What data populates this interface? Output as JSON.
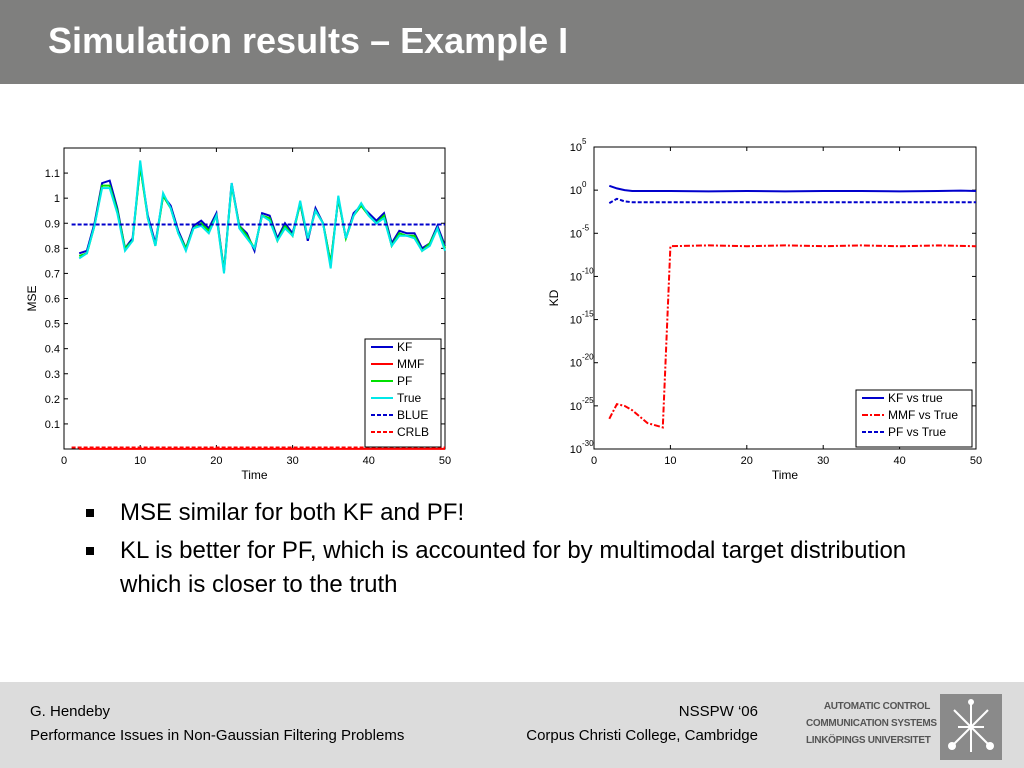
{
  "slide": {
    "title": "Simulation results – Example I"
  },
  "bullets": [
    "MSE similar for both KF and PF!",
    "KL is better for PF, which is accounted for by multimodal target distribution which is closer to the truth"
  ],
  "footer": {
    "author": "G. Hendeby",
    "talk_title": "Performance Issues in Non-Gaussian Filtering Problems",
    "event": "NSSPW ‘06",
    "venue": "Corpus Christi College, Cambridge"
  },
  "logo": {
    "line1": "AUTOMATIC CONTROL",
    "line2": "COMMUNICATION SYSTEMS",
    "line3": "LINKÖPINGS UNIVERSITET"
  },
  "colors": {
    "title_bar": "#7f7f7e",
    "footer": "#dcdcdc",
    "kf": "#0000cc",
    "mmf": "#ff0000",
    "pf": "#00e000",
    "true": "#00e8e8",
    "blue": "#0000cc",
    "crlb": "#ff0000"
  },
  "chart_data": [
    {
      "type": "line",
      "xlabel": "Time",
      "ylabel": "MSE",
      "xlim": [
        0,
        50
      ],
      "ylim": [
        0,
        1.2
      ],
      "xticks": [
        "0",
        "10",
        "20",
        "30",
        "40",
        "50"
      ],
      "yticks": [
        "0.1",
        "0.2",
        "0.3",
        "0.4",
        "0.5",
        "0.6",
        "0.7",
        "0.8",
        "0.9",
        "1",
        "1.1"
      ],
      "legend_position": "bottom-right",
      "series": [
        {
          "name": "KF",
          "color": "#0000cc",
          "style": "solid",
          "x": [
            2,
            3,
            4,
            5,
            6,
            7,
            8,
            9,
            10,
            11,
            12,
            13,
            14,
            15,
            16,
            17,
            18,
            19,
            20,
            21,
            22,
            23,
            24,
            25,
            26,
            27,
            28,
            29,
            30,
            31,
            32,
            33,
            34,
            35,
            36,
            37,
            38,
            39,
            40,
            41,
            42,
            43,
            44,
            45,
            46,
            47,
            48,
            49,
            50
          ],
          "y": [
            0.78,
            0.79,
            0.9,
            1.06,
            1.07,
            0.96,
            0.8,
            0.84,
            1.13,
            0.93,
            0.82,
            1.01,
            0.97,
            0.87,
            0.8,
            0.89,
            0.91,
            0.88,
            0.94,
            0.71,
            1.06,
            0.89,
            0.86,
            0.79,
            0.94,
            0.93,
            0.84,
            0.9,
            0.86,
            0.98,
            0.83,
            0.96,
            0.9,
            0.74,
            1.0,
            0.84,
            0.94,
            0.97,
            0.94,
            0.91,
            0.94,
            0.82,
            0.87,
            0.86,
            0.86,
            0.8,
            0.82,
            0.89,
            0.81
          ]
        },
        {
          "name": "MMF",
          "color": "#ff0000",
          "style": "solid",
          "x": [
            2,
            50
          ],
          "y": [
            0.0004,
            0.0004
          ]
        },
        {
          "name": "PF",
          "color": "#00e000",
          "style": "solid",
          "x": [
            2,
            3,
            4,
            5,
            6,
            7,
            8,
            9,
            10,
            11,
            12,
            13,
            14,
            15,
            16,
            17,
            18,
            19,
            20,
            21,
            22,
            23,
            24,
            25,
            26,
            27,
            28,
            29,
            30,
            31,
            32,
            33,
            34,
            35,
            36,
            37,
            38,
            39,
            40,
            41,
            42,
            43,
            44,
            45,
            46,
            47,
            48,
            49,
            50
          ],
          "y": [
            0.77,
            0.78,
            0.89,
            1.05,
            1.05,
            0.95,
            0.8,
            0.83,
            1.13,
            0.92,
            0.81,
            1.01,
            0.96,
            0.86,
            0.8,
            0.88,
            0.9,
            0.87,
            0.93,
            0.71,
            1.05,
            0.89,
            0.85,
            0.8,
            0.93,
            0.92,
            0.83,
            0.89,
            0.85,
            0.98,
            0.84,
            0.95,
            0.9,
            0.74,
            1.0,
            0.84,
            0.93,
            0.97,
            0.93,
            0.9,
            0.93,
            0.81,
            0.86,
            0.85,
            0.85,
            0.79,
            0.82,
            0.88,
            0.8
          ]
        },
        {
          "name": "True",
          "color": "#00e8e8",
          "style": "solid",
          "x": [
            2,
            3,
            4,
            5,
            6,
            7,
            8,
            9,
            10,
            11,
            12,
            13,
            14,
            15,
            16,
            17,
            18,
            19,
            20,
            21,
            22,
            23,
            24,
            25,
            26,
            27,
            28,
            29,
            30,
            31,
            32,
            33,
            34,
            35,
            36,
            37,
            38,
            39,
            40,
            41,
            42,
            43,
            44,
            45,
            46,
            47,
            48,
            49,
            50
          ],
          "y": [
            0.76,
            0.78,
            0.89,
            1.04,
            1.04,
            0.94,
            0.79,
            0.83,
            1.15,
            0.92,
            0.81,
            1.02,
            0.96,
            0.86,
            0.79,
            0.88,
            0.89,
            0.86,
            0.93,
            0.7,
            1.06,
            0.88,
            0.84,
            0.8,
            0.93,
            0.91,
            0.83,
            0.88,
            0.85,
            0.99,
            0.84,
            0.95,
            0.9,
            0.72,
            1.01,
            0.84,
            0.93,
            0.98,
            0.93,
            0.9,
            0.92,
            0.81,
            0.85,
            0.85,
            0.84,
            0.79,
            0.81,
            0.88,
            0.79
          ]
        },
        {
          "name": "BLUE",
          "color": "#0000cc",
          "style": "dashed",
          "x": [
            1,
            50
          ],
          "y": [
            0.895,
            0.895
          ]
        },
        {
          "name": "CRLB",
          "color": "#ff0000",
          "style": "dashed",
          "x": [
            1,
            50
          ],
          "y": [
            0.006,
            0.006
          ]
        }
      ]
    },
    {
      "type": "line",
      "xlabel": "Time",
      "ylabel": "KD",
      "yscale": "log",
      "xlim": [
        0,
        50
      ],
      "ylim": [
        1e-30,
        100000.0
      ],
      "xticks": [
        "0",
        "10",
        "20",
        "30",
        "40",
        "50"
      ],
      "yticks": [
        {
          "base": "10",
          "exp": "5",
          "value": 5
        },
        {
          "base": "10",
          "exp": "0",
          "value": 0
        },
        {
          "base": "10",
          "exp": "-5",
          "value": -5
        },
        {
          "base": "10",
          "exp": "-10",
          "value": -10
        },
        {
          "base": "10",
          "exp": "-15",
          "value": -15
        },
        {
          "base": "10",
          "exp": "-20",
          "value": -20
        },
        {
          "base": "10",
          "exp": "-25",
          "value": -25
        },
        {
          "base": "10",
          "exp": "-30",
          "value": -30
        }
      ],
      "legend_position": "bottom-right",
      "series": [
        {
          "name": "KF vs true",
          "color": "#0000cc",
          "style": "solid",
          "x": [
            2,
            3,
            4,
            5,
            10,
            15,
            20,
            25,
            30,
            35,
            40,
            45,
            48,
            50
          ],
          "y": [
            0.5,
            0.2,
            0.0,
            -0.1,
            -0.1,
            -0.15,
            -0.1,
            -0.15,
            -0.1,
            -0.1,
            -0.15,
            -0.1,
            -0.05,
            -0.1
          ]
        },
        {
          "name": "MMF vs True",
          "color": "#ff0000",
          "style": "dashdot",
          "x": [
            2,
            3,
            4,
            5,
            7,
            9,
            10,
            15,
            20,
            25,
            30,
            35,
            40,
            45,
            50
          ],
          "y": [
            -26.5,
            -24.8,
            -25.0,
            -25.5,
            -27.0,
            -27.5,
            -6.5,
            -6.4,
            -6.5,
            -6.4,
            -6.5,
            -6.4,
            -6.5,
            -6.4,
            -6.5
          ]
        },
        {
          "name": "PF vs True",
          "color": "#0000cc",
          "style": "dashed",
          "x": [
            2,
            3,
            4,
            5,
            10,
            15,
            20,
            25,
            30,
            35,
            40,
            45,
            50
          ],
          "y": [
            -1.5,
            -1.0,
            -1.3,
            -1.4,
            -1.4,
            -1.4,
            -1.4,
            -1.4,
            -1.4,
            -1.4,
            -1.4,
            -1.4,
            -1.4
          ]
        }
      ]
    }
  ]
}
